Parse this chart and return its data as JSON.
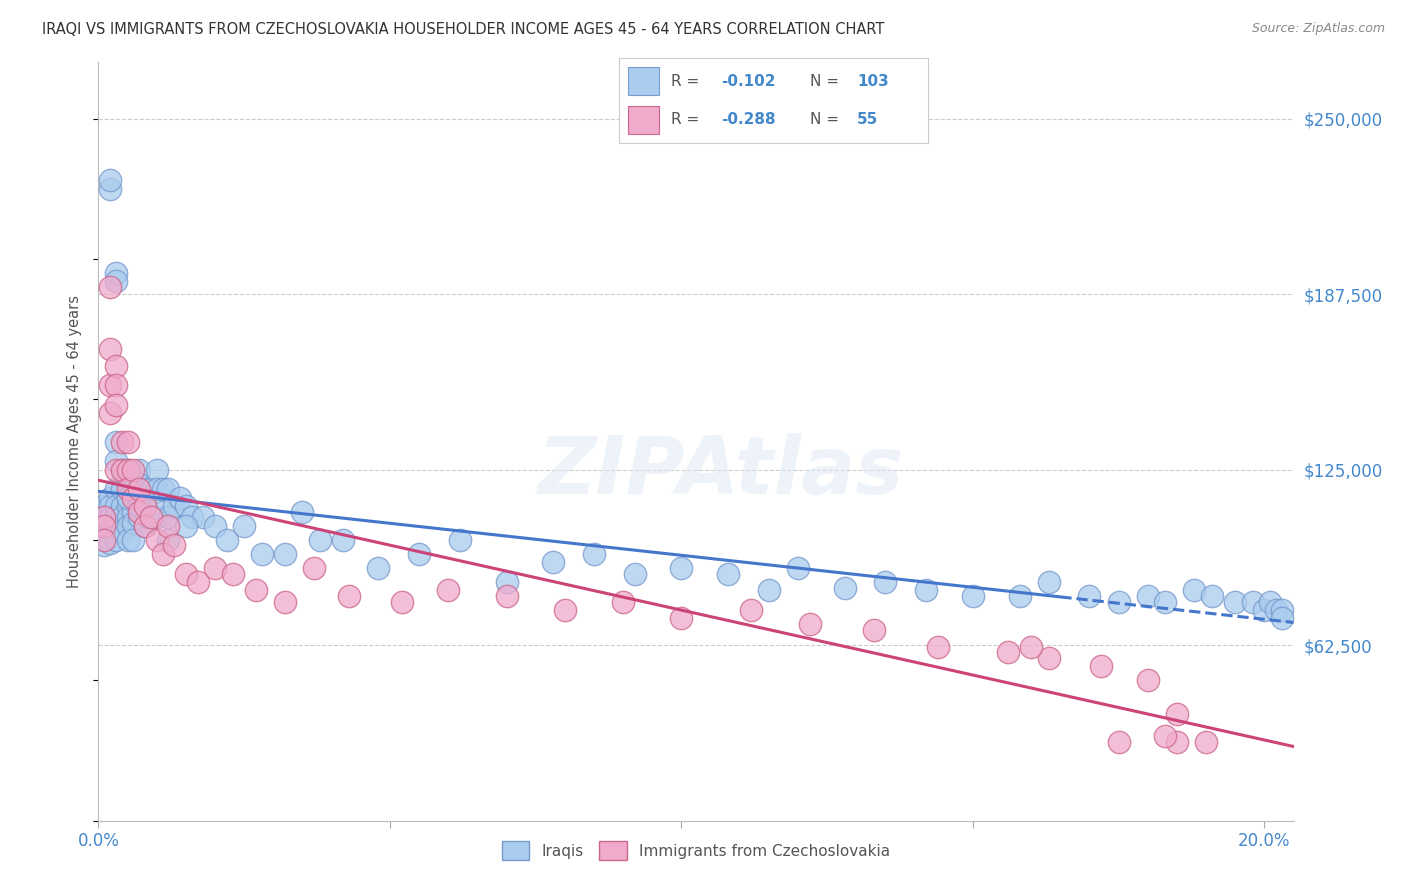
{
  "title": "IRAQI VS IMMIGRANTS FROM CZECHOSLOVAKIA HOUSEHOLDER INCOME AGES 45 - 64 YEARS CORRELATION CHART",
  "source": "Source: ZipAtlas.com",
  "ylabel": "Householder Income Ages 45 - 64 years",
  "ytick_labels": [
    "$62,500",
    "$125,000",
    "$187,500",
    "$250,000"
  ],
  "ytick_vals": [
    62500,
    125000,
    187500,
    250000
  ],
  "ylim": [
    0,
    270000
  ],
  "xlim": [
    0.0,
    0.205
  ],
  "xlabel_ticks": [
    "0.0%",
    "20.0%"
  ],
  "xlabel_vals": [
    0.0,
    0.2
  ],
  "background_color": "#ffffff",
  "grid_color": "#cccccc",
  "axis_color": "#4488cc",
  "iraqis_color": "#aaccee",
  "iraqis_edge": "#7799cc",
  "czechs_color": "#f0aacc",
  "czechs_edge": "#cc6688",
  "iraqis_line_color": "#4477cc",
  "czechs_line_color": "#cc4477",
  "iraqis_R": "-0.102",
  "iraqis_N": "103",
  "czechs_R": "-0.288",
  "czechs_N": "55",
  "watermark": "ZIPAtlas",
  "iraqis_x": [
    0.001,
    0.001,
    0.001,
    0.001,
    0.001,
    0.002,
    0.002,
    0.002,
    0.002,
    0.002,
    0.002,
    0.002,
    0.003,
    0.003,
    0.003,
    0.003,
    0.003,
    0.003,
    0.003,
    0.003,
    0.003,
    0.004,
    0.004,
    0.004,
    0.004,
    0.004,
    0.005,
    0.005,
    0.005,
    0.005,
    0.005,
    0.005,
    0.005,
    0.006,
    0.006,
    0.006,
    0.006,
    0.006,
    0.007,
    0.007,
    0.007,
    0.007,
    0.008,
    0.008,
    0.008,
    0.009,
    0.009,
    0.01,
    0.01,
    0.01,
    0.011,
    0.011,
    0.012,
    0.012,
    0.013,
    0.014,
    0.015,
    0.016,
    0.018,
    0.02,
    0.022,
    0.025,
    0.028,
    0.032,
    0.035,
    0.038,
    0.042,
    0.048,
    0.055,
    0.062,
    0.07,
    0.078,
    0.085,
    0.092,
    0.1,
    0.108,
    0.115,
    0.12,
    0.128,
    0.135,
    0.142,
    0.15,
    0.158,
    0.163,
    0.17,
    0.175,
    0.18,
    0.183,
    0.188,
    0.191,
    0.195,
    0.198,
    0.2,
    0.201,
    0.202,
    0.203,
    0.203,
    0.0085,
    0.005,
    0.007,
    0.009,
    0.012,
    0.015
  ],
  "iraqis_y": [
    100000,
    108000,
    112000,
    105000,
    98000,
    225000,
    228000,
    115000,
    112000,
    108000,
    103000,
    99000,
    195000,
    192000,
    135000,
    128000,
    118000,
    112000,
    108000,
    105000,
    100000,
    125000,
    118000,
    112000,
    108000,
    103000,
    125000,
    120000,
    115000,
    112000,
    108000,
    105000,
    100000,
    118000,
    115000,
    110000,
    106000,
    100000,
    125000,
    120000,
    115000,
    108000,
    118000,
    112000,
    105000,
    118000,
    108000,
    125000,
    118000,
    108000,
    118000,
    110000,
    118000,
    108000,
    112000,
    115000,
    112000,
    108000,
    108000,
    105000,
    100000,
    105000,
    95000,
    95000,
    110000,
    100000,
    100000,
    90000,
    95000,
    100000,
    85000,
    92000,
    95000,
    88000,
    90000,
    88000,
    82000,
    90000,
    83000,
    85000,
    82000,
    80000,
    80000,
    85000,
    80000,
    78000,
    80000,
    78000,
    82000,
    80000,
    78000,
    78000,
    75000,
    78000,
    75000,
    75000,
    72000,
    108000,
    115000,
    112000,
    108000,
    100000,
    105000
  ],
  "czechs_x": [
    0.001,
    0.001,
    0.001,
    0.002,
    0.002,
    0.002,
    0.002,
    0.003,
    0.003,
    0.003,
    0.003,
    0.004,
    0.004,
    0.005,
    0.005,
    0.005,
    0.006,
    0.006,
    0.007,
    0.007,
    0.008,
    0.008,
    0.009,
    0.01,
    0.011,
    0.012,
    0.013,
    0.015,
    0.017,
    0.02,
    0.023,
    0.027,
    0.032,
    0.037,
    0.043,
    0.052,
    0.06,
    0.07,
    0.08,
    0.09,
    0.1,
    0.112,
    0.122,
    0.133,
    0.144,
    0.156,
    0.163,
    0.172,
    0.18,
    0.16,
    0.175,
    0.185,
    0.19,
    0.185,
    0.183
  ],
  "czechs_y": [
    108000,
    105000,
    100000,
    190000,
    168000,
    155000,
    145000,
    162000,
    155000,
    148000,
    125000,
    135000,
    125000,
    135000,
    125000,
    118000,
    125000,
    115000,
    118000,
    110000,
    112000,
    105000,
    108000,
    100000,
    95000,
    105000,
    98000,
    88000,
    85000,
    90000,
    88000,
    82000,
    78000,
    90000,
    80000,
    78000,
    82000,
    80000,
    75000,
    78000,
    72000,
    75000,
    70000,
    68000,
    62000,
    60000,
    58000,
    55000,
    50000,
    62000,
    28000,
    38000,
    28000,
    28000,
    30000
  ]
}
